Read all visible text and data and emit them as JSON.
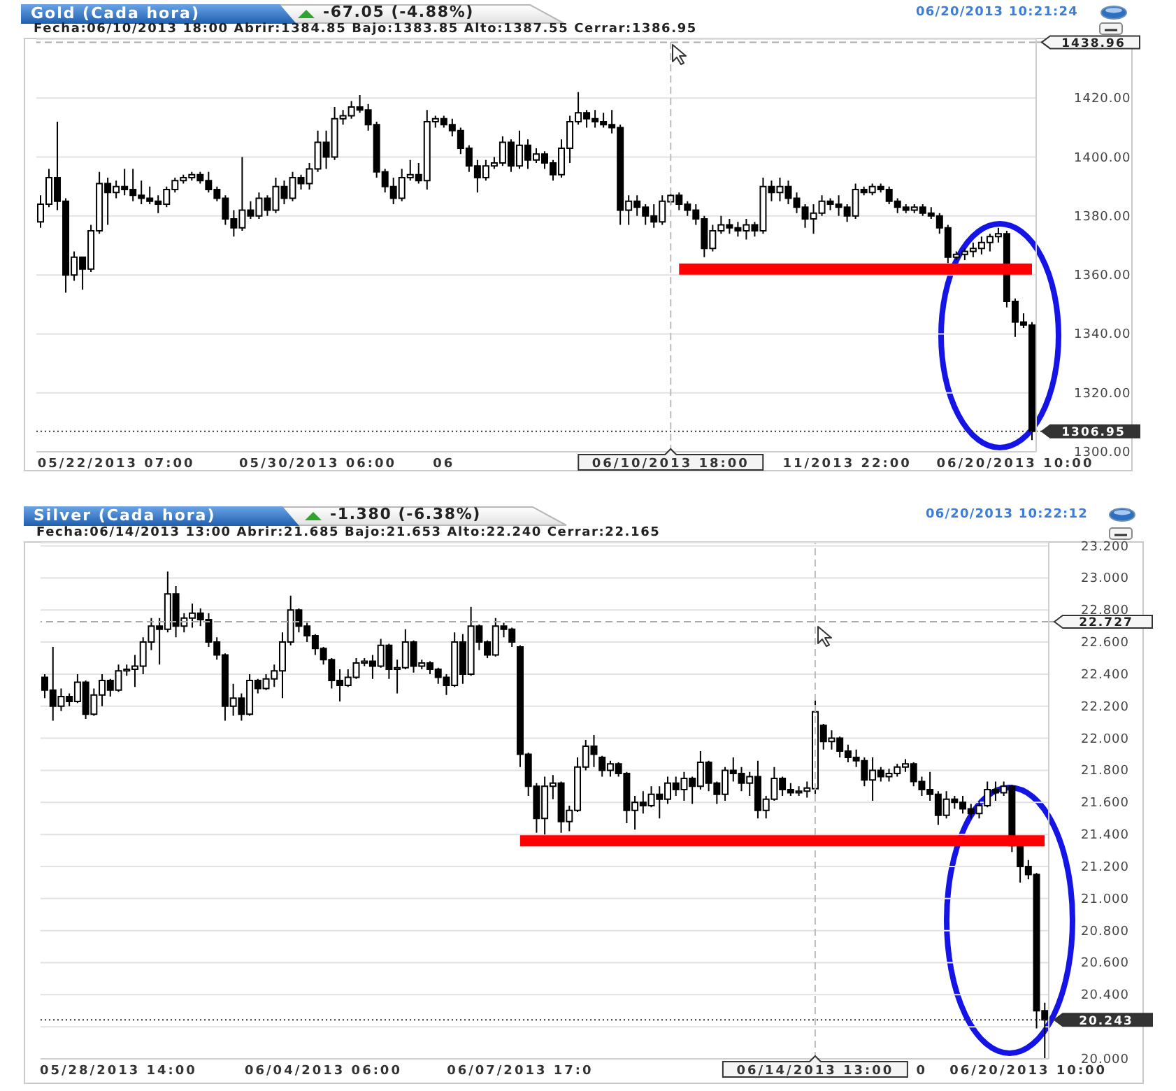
{
  "chart_data": [
    {
      "type": "candlestick",
      "title": "Gold (Cada hora)",
      "subtitle": "-67.05 (-4.88%)",
      "annotations": [
        "Fecha:06/10/2013 18:00 Abrir:1384.85 Bajo:1383.85 Alto:1387.55 Cerrar:1386.95",
        "06/20/2013 10:21:24"
      ],
      "color": "#000000",
      "categories": [
        null,
        null,
        null,
        null,
        null,
        null,
        null,
        null,
        null,
        "05/22/2013 07:00",
        null,
        null,
        null,
        null,
        null,
        null,
        null,
        null,
        null,
        null,
        null,
        null,
        null,
        null,
        null,
        null,
        null,
        null,
        null,
        null,
        null,
        null,
        null,
        "05/30/2013 06:00",
        null,
        null,
        null,
        null,
        null,
        null,
        null,
        null,
        null,
        null,
        null,
        null,
        null,
        null,
        "06",
        null,
        null,
        null,
        null,
        null,
        null,
        null,
        null,
        null,
        null,
        null,
        null,
        null,
        null,
        null,
        null,
        null,
        null,
        null,
        null,
        null,
        null,
        null,
        null,
        null,
        null,
        "06/10/2013 18:00",
        null,
        null,
        null,
        null,
        null,
        null,
        null,
        null,
        null,
        null,
        null,
        null,
        null,
        null,
        null,
        null,
        null,
        null,
        null,
        null,
        "11/2013 22:00",
        null,
        null,
        null,
        null,
        null,
        null,
        null,
        null,
        null,
        null,
        null,
        null,
        null,
        null,
        null,
        null,
        null,
        null,
        null,
        "06/20/2013 10:00",
        null,
        null
      ],
      "ohlc": [
        [
          1378,
          1387,
          1376,
          1384
        ],
        [
          1384,
          1396,
          1383,
          1393
        ],
        [
          1393,
          1412,
          1382,
          1385
        ],
        [
          1385,
          1386,
          1354,
          1360
        ],
        [
          1360,
          1368,
          1358,
          1366
        ],
        [
          1366,
          1366,
          1355,
          1362
        ],
        [
          1362,
          1377,
          1361,
          1375
        ],
        [
          1375,
          1395,
          1374,
          1391
        ],
        [
          1391,
          1393,
          1377,
          1388
        ],
        [
          1388,
          1392,
          1386,
          1390
        ],
        [
          1390,
          1396,
          1387,
          1389
        ],
        [
          1389,
          1396,
          1385,
          1387
        ],
        [
          1387,
          1392,
          1384,
          1386
        ],
        [
          1386,
          1390,
          1384,
          1385
        ],
        [
          1385,
          1387,
          1381,
          1384
        ],
        [
          1384,
          1390,
          1383,
          1389
        ],
        [
          1389,
          1393,
          1388,
          1392
        ],
        [
          1392,
          1394,
          1391,
          1393
        ],
        [
          1393,
          1395,
          1392,
          1394
        ],
        [
          1394,
          1395,
          1391,
          1392
        ],
        [
          1392,
          1395,
          1388,
          1389
        ],
        [
          1389,
          1390,
          1385,
          1386
        ],
        [
          1386,
          1387,
          1377,
          1379
        ],
        [
          1379,
          1382,
          1373,
          1376
        ],
        [
          1376,
          1400,
          1375,
          1382
        ],
        [
          1382,
          1385,
          1379,
          1380
        ],
        [
          1380,
          1388,
          1379,
          1386
        ],
        [
          1386,
          1387,
          1380,
          1382
        ],
        [
          1382,
          1393,
          1381,
          1390
        ],
        [
          1390,
          1392,
          1384,
          1386
        ],
        [
          1386,
          1395,
          1385,
          1393
        ],
        [
          1393,
          1394,
          1389,
          1391
        ],
        [
          1391,
          1398,
          1389,
          1396
        ],
        [
          1396,
          1409,
          1395,
          1405
        ],
        [
          1405,
          1409,
          1396,
          1400
        ],
        [
          1400,
          1417,
          1399,
          1413
        ],
        [
          1413,
          1416,
          1411,
          1414
        ],
        [
          1414,
          1419,
          1413,
          1417
        ],
        [
          1417,
          1421,
          1415,
          1416
        ],
        [
          1416,
          1418,
          1409,
          1411
        ],
        [
          1411,
          1412,
          1393,
          1395
        ],
        [
          1395,
          1396,
          1388,
          1390
        ],
        [
          1390,
          1393,
          1384,
          1386
        ],
        [
          1386,
          1396,
          1385,
          1393
        ],
        [
          1393,
          1399,
          1392,
          1394
        ],
        [
          1394,
          1398,
          1391,
          1392
        ],
        [
          1392,
          1416,
          1389,
          1412
        ],
        [
          1412,
          1414,
          1410,
          1413
        ],
        [
          1413,
          1414,
          1410,
          1411
        ],
        [
          1411,
          1413,
          1407,
          1409
        ],
        [
          1409,
          1410,
          1401,
          1403
        ],
        [
          1403,
          1404,
          1395,
          1397
        ],
        [
          1397,
          1399,
          1388,
          1393
        ],
        [
          1393,
          1399,
          1392,
          1397
        ],
        [
          1397,
          1400,
          1396,
          1398
        ],
        [
          1398,
          1407,
          1397,
          1405
        ],
        [
          1405,
          1406,
          1395,
          1397
        ],
        [
          1397,
          1409,
          1396,
          1404
        ],
        [
          1404,
          1406,
          1396,
          1399
        ],
        [
          1399,
          1403,
          1398,
          1401
        ],
        [
          1401,
          1402,
          1396,
          1398
        ],
        [
          1398,
          1399,
          1392,
          1394
        ],
        [
          1394,
          1406,
          1393,
          1403
        ],
        [
          1403,
          1414,
          1398,
          1412
        ],
        [
          1412,
          1422,
          1411,
          1415
        ],
        [
          1415,
          1416,
          1410,
          1413
        ],
        [
          1413,
          1416,
          1410,
          1412
        ],
        [
          1412,
          1415,
          1410,
          1411
        ],
        [
          1411,
          1416,
          1408,
          1410
        ],
        [
          1410,
          1411,
          1377,
          1382
        ],
        [
          1382,
          1387,
          1377,
          1385
        ],
        [
          1385,
          1387,
          1380,
          1383
        ],
        [
          1383,
          1384,
          1377,
          1380
        ],
        [
          1380,
          1384,
          1376,
          1378
        ],
        [
          1378,
          1387,
          1377,
          1385
        ],
        [
          1384.85,
          1387.55,
          1383.85,
          1386.95
        ],
        [
          1387,
          1388,
          1382,
          1384
        ],
        [
          1384,
          1385,
          1380,
          1382
        ],
        [
          1382,
          1384,
          1377,
          1379
        ],
        [
          1379,
          1380,
          1366,
          1369
        ],
        [
          1369,
          1377,
          1368,
          1375
        ],
        [
          1375,
          1380,
          1374,
          1377
        ],
        [
          1377,
          1379,
          1374,
          1376
        ],
        [
          1376,
          1378,
          1373,
          1375
        ],
        [
          1375,
          1379,
          1372,
          1377
        ],
        [
          1377,
          1378,
          1373,
          1375
        ],
        [
          1375,
          1393,
          1374,
          1390
        ],
        [
          1390,
          1392,
          1385,
          1388
        ],
        [
          1388,
          1393,
          1385,
          1390
        ],
        [
          1390,
          1392,
          1384,
          1386
        ],
        [
          1386,
          1388,
          1381,
          1383
        ],
        [
          1383,
          1384,
          1376,
          1379
        ],
        [
          1379,
          1384,
          1374,
          1381
        ],
        [
          1381,
          1387,
          1380,
          1385
        ],
        [
          1385,
          1386,
          1382,
          1384
        ],
        [
          1384,
          1387,
          1380,
          1383
        ],
        [
          1383,
          1384,
          1378,
          1380
        ],
        [
          1380,
          1391,
          1379,
          1389
        ],
        [
          1389,
          1390,
          1387,
          1388
        ],
        [
          1388,
          1391,
          1387,
          1390
        ],
        [
          1390,
          1391,
          1388,
          1389
        ],
        [
          1389,
          1390,
          1384,
          1385
        ],
        [
          1385,
          1386,
          1381,
          1383
        ],
        [
          1383,
          1384,
          1381,
          1382
        ],
        [
          1382,
          1384,
          1381,
          1383
        ],
        [
          1383,
          1384,
          1380,
          1381
        ],
        [
          1381,
          1383,
          1379,
          1380
        ],
        [
          1380,
          1381,
          1374,
          1376
        ],
        [
          1376,
          1377,
          1364,
          1366
        ],
        [
          1366,
          1368,
          1365,
          1367
        ],
        [
          1367,
          1369,
          1365,
          1368
        ],
        [
          1368,
          1371,
          1366,
          1369
        ],
        [
          1369,
          1373,
          1367,
          1371
        ],
        [
          1371,
          1374,
          1368,
          1373
        ],
        [
          1373,
          1376,
          1371,
          1374
        ],
        [
          1374,
          1375,
          1349,
          1351
        ],
        [
          1351,
          1352,
          1339,
          1344
        ],
        [
          1344,
          1347,
          1342,
          1343
        ],
        [
          1343,
          1344,
          1304,
          1306.95
        ]
      ],
      "series": [
        {
          "type": "line",
          "color": "#ff0000",
          "values": [
            null,
            null,
            null,
            null,
            null,
            null,
            null,
            null,
            null,
            null,
            null,
            null,
            null,
            null,
            null,
            null,
            null,
            null,
            null,
            null,
            null,
            null,
            null,
            null,
            null,
            null,
            null,
            null,
            null,
            null,
            null,
            null,
            null,
            null,
            null,
            null,
            null,
            null,
            null,
            null,
            null,
            null,
            null,
            null,
            null,
            null,
            null,
            null,
            null,
            null,
            null,
            null,
            null,
            null,
            null,
            null,
            null,
            null,
            null,
            null,
            null,
            null,
            null,
            null,
            null,
            null,
            null,
            null,
            null,
            null,
            null,
            null,
            null,
            null,
            null,
            null,
            1362,
            1362,
            1362,
            1362,
            1362,
            1362,
            1362,
            1362,
            1362,
            1362,
            1362,
            1362,
            1362,
            1362,
            1362,
            1362,
            1362,
            1362,
            1362,
            1362,
            1362,
            1362,
            1362,
            1362,
            1362,
            1362,
            1362,
            1362,
            1362,
            1362,
            1362,
            1362,
            1362,
            1362,
            1362,
            1362,
            1362,
            1362,
            1362,
            1362,
            1362,
            1362,
            1362
          ]
        }
      ],
      "ylim": [
        1300,
        1440
      ],
      "yticks": [
        {
          "value": 1300,
          "label": "1300.00"
        },
        {
          "value": 1320,
          "label": "1320.00"
        },
        {
          "value": 1340,
          "label": "1340.00"
        },
        {
          "value": 1360,
          "label": "1360.00"
        },
        {
          "value": 1380,
          "label": "1380.00"
        },
        {
          "value": 1400,
          "label": "1400.00"
        },
        {
          "value": 1420,
          "label": "1420.00"
        }
      ],
      "grid": "y",
      "ref_lines": [
        {
          "axis": "y",
          "value": 1438.96,
          "label": "1438.96",
          "line_style": "dashed",
          "color": "#aaaaaa"
        },
        {
          "axis": "y",
          "value": 1306.95,
          "label": "1306.95",
          "line_style": "dotted",
          "color": "#333333"
        },
        {
          "axis": "x",
          "value": "06/10/2013 18:00",
          "line_style": "dashed",
          "color": "#bbbbbb"
        }
      ]
    },
    {
      "type": "candlestick",
      "title": "Silver (Cada hora)",
      "subtitle": "-1.380 (-6.38%)",
      "annotations": [
        "Fecha:06/14/2013 13:00 Abrir:21.685 Bajo:21.653 Alto:22.240 Cerrar:22.165",
        "06/20/2013 10:22:12"
      ],
      "color": "#000000",
      "categories": [
        null,
        null,
        null,
        null,
        null,
        null,
        null,
        null,
        null,
        "05/28/2013 14:00",
        null,
        null,
        null,
        null,
        null,
        null,
        null,
        null,
        null,
        null,
        null,
        null,
        null,
        null,
        null,
        null,
        null,
        null,
        null,
        null,
        null,
        null,
        null,
        null,
        "06/04/2013 06:00",
        null,
        null,
        null,
        null,
        null,
        null,
        null,
        null,
        null,
        null,
        null,
        null,
        null,
        null,
        null,
        null,
        null,
        null,
        null,
        null,
        null,
        null,
        null,
        "06/07/2013 17:0",
        null,
        null,
        null,
        null,
        null,
        null,
        null,
        null,
        null,
        null,
        null,
        null,
        null,
        null,
        null,
        null,
        null,
        null,
        null,
        null,
        null,
        null,
        null,
        null,
        null,
        null,
        null,
        null,
        null,
        null,
        null,
        null,
        null,
        null,
        null,
        "06/14/2013 13:00",
        null,
        null,
        null,
        null,
        null,
        null,
        null,
        null,
        null,
        null,
        null,
        null,
        "0",
        null,
        null,
        null,
        null,
        null,
        null,
        null,
        null,
        null,
        null,
        null,
        null,
        "06/20/2013 10:00",
        null,
        null
      ],
      "ohlc": [
        [
          22.38,
          22.4,
          22.25,
          22.3
        ],
        [
          22.3,
          22.57,
          22.11,
          22.2
        ],
        [
          22.2,
          22.31,
          22.17,
          22.26
        ],
        [
          22.26,
          22.28,
          22.2,
          22.23
        ],
        [
          22.23,
          22.4,
          22.22,
          22.35
        ],
        [
          22.35,
          22.36,
          22.12,
          22.15
        ],
        [
          22.15,
          22.31,
          22.14,
          22.27
        ],
        [
          22.27,
          22.4,
          22.2,
          22.36
        ],
        [
          22.36,
          22.37,
          22.26,
          22.3
        ],
        [
          22.3,
          22.46,
          22.29,
          22.42
        ],
        [
          22.42,
          22.46,
          22.39,
          22.43
        ],
        [
          22.43,
          22.52,
          22.32,
          22.45
        ],
        [
          22.45,
          22.63,
          22.4,
          22.6
        ],
        [
          22.6,
          22.75,
          22.55,
          22.7
        ],
        [
          22.7,
          22.75,
          22.46,
          22.68
        ],
        [
          22.68,
          23.04,
          22.66,
          22.9
        ],
        [
          22.9,
          22.95,
          22.63,
          22.7
        ],
        [
          22.7,
          22.78,
          22.66,
          22.75
        ],
        [
          22.75,
          22.84,
          22.69,
          22.78
        ],
        [
          22.78,
          22.81,
          22.7,
          22.74
        ],
        [
          22.74,
          22.78,
          22.57,
          22.6
        ],
        [
          22.6,
          22.63,
          22.49,
          22.52
        ],
        [
          22.52,
          22.53,
          22.11,
          22.2
        ],
        [
          22.2,
          22.34,
          22.14,
          22.25
        ],
        [
          22.25,
          22.28,
          22.11,
          22.15
        ],
        [
          22.15,
          22.4,
          22.14,
          22.36
        ],
        [
          22.36,
          22.37,
          22.28,
          22.31
        ],
        [
          22.31,
          22.4,
          22.3,
          22.37
        ],
        [
          22.37,
          22.46,
          22.32,
          22.42
        ],
        [
          22.42,
          22.66,
          22.25,
          22.6
        ],
        [
          22.6,
          22.89,
          22.58,
          22.8
        ],
        [
          22.8,
          22.81,
          22.66,
          22.7
        ],
        [
          22.7,
          22.72,
          22.6,
          22.64
        ],
        [
          22.64,
          22.65,
          22.52,
          22.56
        ],
        [
          22.56,
          22.57,
          22.46,
          22.49
        ],
        [
          22.49,
          22.5,
          22.31,
          22.36
        ],
        [
          22.36,
          22.43,
          22.23,
          22.33
        ],
        [
          22.33,
          22.43,
          22.32,
          22.38
        ],
        [
          22.38,
          22.5,
          22.37,
          22.47
        ],
        [
          22.47,
          22.5,
          22.45,
          22.48
        ],
        [
          22.48,
          22.52,
          22.37,
          22.45
        ],
        [
          22.45,
          22.62,
          22.44,
          22.58
        ],
        [
          22.58,
          22.59,
          22.37,
          22.43
        ],
        [
          22.43,
          22.49,
          22.28,
          22.44
        ],
        [
          22.44,
          22.68,
          22.43,
          22.6
        ],
        [
          22.6,
          22.61,
          22.41,
          22.45
        ],
        [
          22.45,
          22.49,
          22.43,
          22.47
        ],
        [
          22.47,
          22.48,
          22.4,
          22.43
        ],
        [
          22.43,
          22.44,
          22.34,
          22.38
        ],
        [
          22.38,
          22.4,
          22.27,
          22.33
        ],
        [
          22.33,
          22.66,
          22.32,
          22.6
        ],
        [
          22.6,
          22.65,
          22.34,
          22.4
        ],
        [
          22.4,
          22.82,
          22.39,
          22.7
        ],
        [
          22.7,
          22.71,
          22.55,
          22.6
        ],
        [
          22.6,
          22.61,
          22.5,
          22.52
        ],
        [
          22.52,
          22.75,
          22.51,
          22.7
        ],
        [
          22.7,
          22.72,
          22.63,
          22.68
        ],
        [
          22.68,
          22.69,
          22.57,
          22.6
        ],
        [
          22.57,
          22.58,
          21.82,
          21.9
        ],
        [
          21.9,
          21.91,
          21.64,
          21.7
        ],
        [
          21.7,
          21.72,
          21.41,
          21.5
        ],
        [
          21.5,
          21.76,
          21.4,
          21.7
        ],
        [
          21.7,
          21.77,
          21.62,
          21.72
        ],
        [
          21.72,
          21.73,
          21.41,
          21.48
        ],
        [
          21.48,
          21.58,
          21.42,
          21.55
        ],
        [
          21.55,
          21.88,
          21.54,
          21.82
        ],
        [
          21.82,
          21.99,
          21.8,
          21.95
        ],
        [
          21.95,
          22.02,
          21.82,
          21.9
        ],
        [
          21.88,
          21.89,
          21.76,
          21.8
        ],
        [
          21.8,
          21.86,
          21.76,
          21.84
        ],
        [
          21.84,
          21.85,
          21.76,
          21.78
        ],
        [
          21.78,
          21.79,
          21.47,
          21.55
        ],
        [
          21.55,
          21.64,
          21.43,
          21.6
        ],
        [
          21.6,
          21.67,
          21.53,
          21.58
        ],
        [
          21.58,
          21.7,
          21.57,
          21.65
        ],
        [
          21.65,
          21.7,
          21.5,
          21.62
        ],
        [
          21.62,
          21.76,
          21.59,
          21.72
        ],
        [
          21.72,
          21.76,
          21.64,
          21.68
        ],
        [
          21.68,
          21.79,
          21.61,
          21.75
        ],
        [
          21.75,
          21.76,
          21.59,
          21.7
        ],
        [
          21.7,
          21.92,
          21.68,
          21.85
        ],
        [
          21.85,
          21.86,
          21.67,
          21.72
        ],
        [
          21.72,
          21.73,
          21.59,
          21.65
        ],
        [
          21.65,
          21.82,
          21.61,
          21.8
        ],
        [
          21.8,
          21.88,
          21.73,
          21.78
        ],
        [
          21.78,
          21.82,
          21.67,
          21.72
        ],
        [
          21.72,
          21.79,
          21.64,
          21.76
        ],
        [
          21.76,
          21.86,
          21.5,
          21.55
        ],
        [
          21.55,
          21.64,
          21.5,
          21.62
        ],
        [
          21.62,
          21.82,
          21.61,
          21.75
        ],
        [
          21.75,
          21.76,
          21.64,
          21.68
        ],
        [
          21.68,
          21.72,
          21.64,
          21.66
        ],
        [
          21.66,
          21.7,
          21.64,
          21.67
        ],
        [
          21.67,
          21.73,
          21.63,
          21.69
        ],
        [
          21.685,
          22.24,
          21.653,
          22.165
        ],
        [
          22.08,
          22.09,
          21.93,
          21.98
        ],
        [
          21.98,
          22.05,
          21.93,
          22.0
        ],
        [
          22.0,
          22.01,
          21.88,
          21.92
        ],
        [
          21.92,
          21.96,
          21.85,
          21.88
        ],
        [
          21.88,
          21.93,
          21.82,
          21.86
        ],
        [
          21.86,
          21.88,
          21.7,
          21.74
        ],
        [
          21.74,
          21.88,
          21.61,
          21.8
        ],
        [
          21.8,
          21.82,
          21.73,
          21.76
        ],
        [
          21.76,
          21.81,
          21.73,
          21.78
        ],
        [
          21.78,
          21.84,
          21.76,
          21.82
        ],
        [
          21.82,
          21.87,
          21.79,
          21.84
        ],
        [
          21.84,
          21.85,
          21.7,
          21.73
        ],
        [
          21.73,
          21.76,
          21.64,
          21.68
        ],
        [
          21.68,
          21.79,
          21.61,
          21.65
        ],
        [
          21.65,
          21.67,
          21.46,
          21.52
        ],
        [
          21.52,
          21.67,
          21.5,
          21.62
        ],
        [
          21.62,
          21.64,
          21.56,
          21.6
        ],
        [
          21.6,
          21.64,
          21.53,
          21.56
        ],
        [
          21.56,
          21.59,
          21.5,
          21.53
        ],
        [
          21.53,
          21.61,
          21.5,
          21.58
        ],
        [
          21.58,
          21.73,
          21.57,
          21.68
        ],
        [
          21.68,
          21.73,
          21.61,
          21.66
        ],
        [
          21.66,
          21.73,
          21.64,
          21.7
        ],
        [
          21.7,
          21.71,
          21.29,
          21.33
        ],
        [
          21.33,
          21.34,
          21.1,
          21.2
        ],
        [
          21.2,
          21.24,
          21.12,
          21.15
        ],
        [
          21.15,
          21.16,
          20.19,
          20.3
        ],
        [
          20.3,
          20.35,
          20.0,
          20.243
        ]
      ],
      "series": [
        {
          "type": "line",
          "color": "#ff0000",
          "values": [
            null,
            null,
            null,
            null,
            null,
            null,
            null,
            null,
            null,
            null,
            null,
            null,
            null,
            null,
            null,
            null,
            null,
            null,
            null,
            null,
            null,
            null,
            null,
            null,
            null,
            null,
            null,
            null,
            null,
            null,
            null,
            null,
            null,
            null,
            null,
            null,
            null,
            null,
            null,
            null,
            null,
            null,
            null,
            null,
            null,
            null,
            null,
            null,
            null,
            null,
            null,
            null,
            null,
            null,
            null,
            null,
            null,
            null,
            21.36,
            21.36,
            21.36,
            21.36,
            21.36,
            21.36,
            21.36,
            21.36,
            21.36,
            21.36,
            21.36,
            21.36,
            21.36,
            21.36,
            21.36,
            21.36,
            21.36,
            21.36,
            21.36,
            21.36,
            21.36,
            21.36,
            21.36,
            21.36,
            21.36,
            21.36,
            21.36,
            21.36,
            21.36,
            21.36,
            21.36,
            21.36,
            21.36,
            21.36,
            21.36,
            21.36,
            21.36,
            21.36,
            21.36,
            21.36,
            21.36,
            21.36,
            21.36,
            21.36,
            21.36,
            21.36,
            21.36,
            21.36,
            21.36,
            21.36,
            21.36,
            21.36,
            21.36,
            21.36,
            21.36,
            21.36,
            21.36,
            21.36,
            21.36,
            21.36,
            21.36,
            21.36,
            21.36,
            21.36,
            21.36
          ]
        }
      ],
      "ylim": [
        20,
        23.22
      ],
      "yticks": [
        {
          "value": 20,
          "label": "20.000"
        },
        {
          "value": 20.2,
          "label": null
        },
        {
          "value": 20.4,
          "label": "20.400"
        },
        {
          "value": 20.6,
          "label": "20.600"
        },
        {
          "value": 20.8,
          "label": "20.800"
        },
        {
          "value": 21,
          "label": "21.000"
        },
        {
          "value": 21.2,
          "label": "21.200"
        },
        {
          "value": 21.4,
          "label": "21.400"
        },
        {
          "value": 21.6,
          "label": "21.600"
        },
        {
          "value": 21.8,
          "label": "21.800"
        },
        {
          "value": 22,
          "label": "22.000"
        },
        {
          "value": 22.2,
          "label": "22.200"
        },
        {
          "value": 22.4,
          "label": "22.400"
        },
        {
          "value": 22.6,
          "label": "22.600"
        },
        {
          "value": 22.8,
          "label": "22.800"
        },
        {
          "value": 23,
          "label": "23.000"
        },
        {
          "value": 23.2,
          "label": "23.200"
        }
      ],
      "grid": "y",
      "ref_lines": [
        {
          "axis": "y",
          "value": 22.727,
          "label": "22.727",
          "line_style": "dashed",
          "color": "#aaaaaa"
        },
        {
          "axis": "y",
          "value": 20.243,
          "label": "20.243",
          "line_style": "dotted",
          "color": "#333333"
        },
        {
          "axis": "x",
          "value": "06/14/2013 13:00",
          "line_style": "dashed",
          "color": "#bbbbbb"
        }
      ]
    }
  ]
}
